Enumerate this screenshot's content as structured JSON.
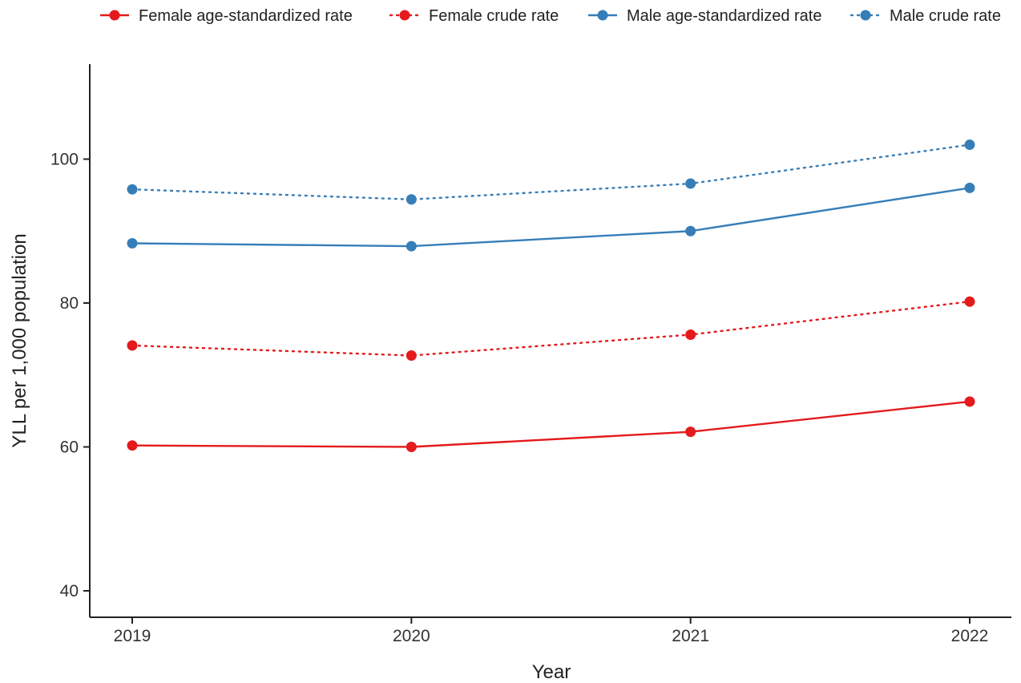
{
  "chart_data": {
    "type": "line",
    "title": "",
    "xlabel": "Year",
    "ylabel": "YLL per 1,000 population",
    "x": [
      2019,
      2020,
      2021,
      2022
    ],
    "x_tick_labels": [
      "2019",
      "2020",
      "2021",
      "2022"
    ],
    "ylim": [
      37,
      113
    ],
    "y_ticks": [
      40,
      60,
      80,
      100
    ],
    "y_tick_labels": [
      "40",
      "60",
      "80",
      "100"
    ],
    "grid": false,
    "legend_position": "top",
    "series": [
      {
        "name": "Female age-standardized rate",
        "color": "#E41A1C",
        "line_style": "solid",
        "values": [
          60.2,
          60.0,
          62.1,
          66.3
        ]
      },
      {
        "name": "Female crude rate",
        "color": "#E41A1C",
        "line_style": "dotted",
        "values": [
          74.1,
          72.7,
          75.6,
          80.2
        ]
      },
      {
        "name": "Male age-standardized rate",
        "color": "#377EB8",
        "line_style": "solid",
        "values": [
          88.3,
          87.9,
          90.0,
          96.0
        ]
      },
      {
        "name": "Male crude rate",
        "color": "#377EB8",
        "line_style": "dotted",
        "values": [
          95.8,
          94.4,
          96.6,
          102.0
        ]
      }
    ]
  }
}
